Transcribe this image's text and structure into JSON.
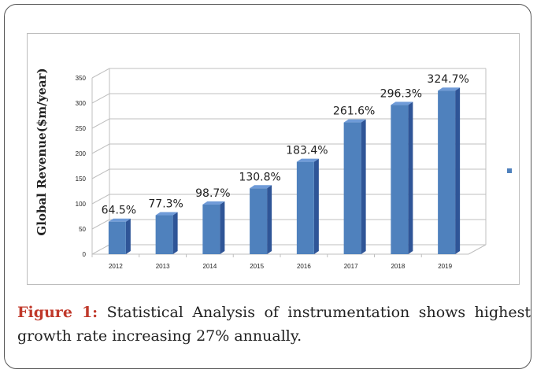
{
  "figure": {
    "label": "Figure 1:",
    "caption": "Statistical Analysis of instrumentation shows highest growth rate increasing 27% annually."
  },
  "chart_data": {
    "type": "bar",
    "categories": [
      "2012",
      "2013",
      "2014",
      "2015",
      "2016",
      "2017",
      "2018",
      "2019"
    ],
    "series": [
      {
        "values": [
          64.5,
          77.3,
          98.7,
          130.8,
          183.4,
          261.6,
          296.3,
          324.7
        ],
        "data_labels": [
          "64.5%",
          "77.3%",
          "98.7%",
          "130.8%",
          "183.4%",
          "261.6%",
          "296.3%",
          "324.7%"
        ]
      }
    ],
    "title": "",
    "xlabel": "",
    "ylabel": "Global Revenue($m/year)",
    "ylim": [
      0,
      350
    ],
    "yticks": [
      0,
      50,
      100,
      150,
      200,
      250,
      300,
      350
    ],
    "grid": true,
    "style": "3d-column",
    "legend": "right",
    "colors": {
      "bar_front": "#4f81bd",
      "bar_side": "#2f5597",
      "bar_top": "#6f9bd8",
      "grid": "#bfbfbf",
      "axis_text": "#222222",
      "legend_marker": "#4f81bd"
    }
  }
}
